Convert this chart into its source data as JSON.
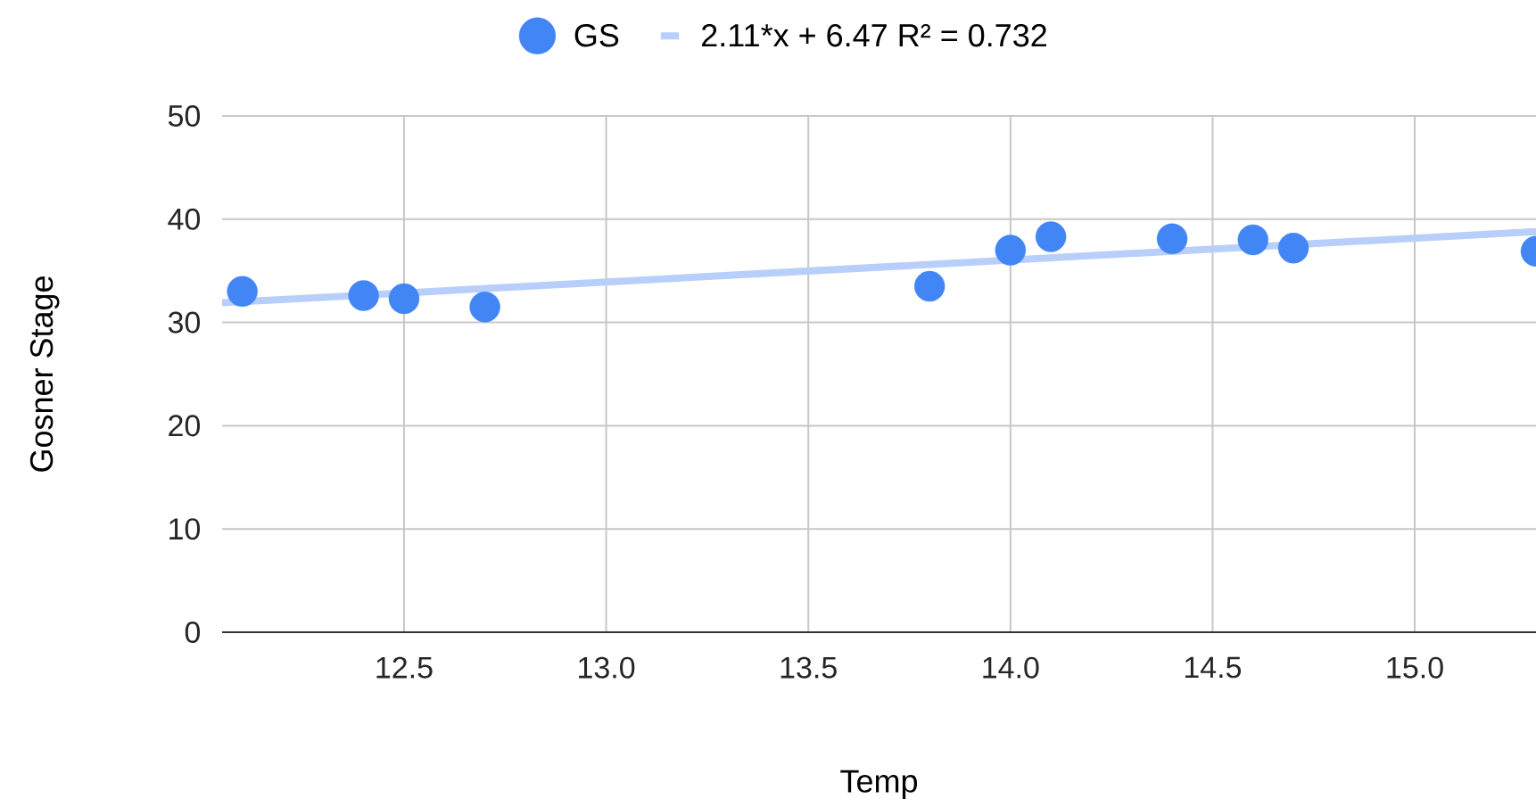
{
  "chart_data": {
    "type": "scatter",
    "xlabel": "Temp",
    "ylabel": "Gosner Stage",
    "xlim": [
      12.05,
      15.3
    ],
    "ylim": [
      0,
      50
    ],
    "xticks": [
      12.5,
      {
        "value": 13,
        "label": "13.0"
      },
      13.5,
      {
        "value": 14,
        "label": "14.0"
      },
      14.5,
      {
        "value": 15,
        "label": "15.0"
      }
    ],
    "yticks": [
      0,
      10,
      20,
      30,
      40,
      50
    ],
    "grid": true,
    "legend": "top",
    "series": [
      {
        "name": "GS",
        "marker": "circle",
        "color": "#4285f4",
        "x": [
          12.1,
          12.4,
          12.5,
          12.7,
          13.8,
          14.0,
          14.1,
          14.4,
          14.6,
          14.7,
          15.3
        ],
        "values": [
          33.0,
          32.6,
          32.3,
          31.5,
          33.5,
          37.0,
          38.3,
          38.1,
          38.0,
          37.2,
          36.9
        ]
      },
      {
        "name": "2.11*x + 6.47 R² = 0.732",
        "type": "line",
        "color": "#b7cffa",
        "x": [
          12.05,
          15.3
        ],
        "values": [
          31.9,
          38.8
        ]
      }
    ]
  }
}
